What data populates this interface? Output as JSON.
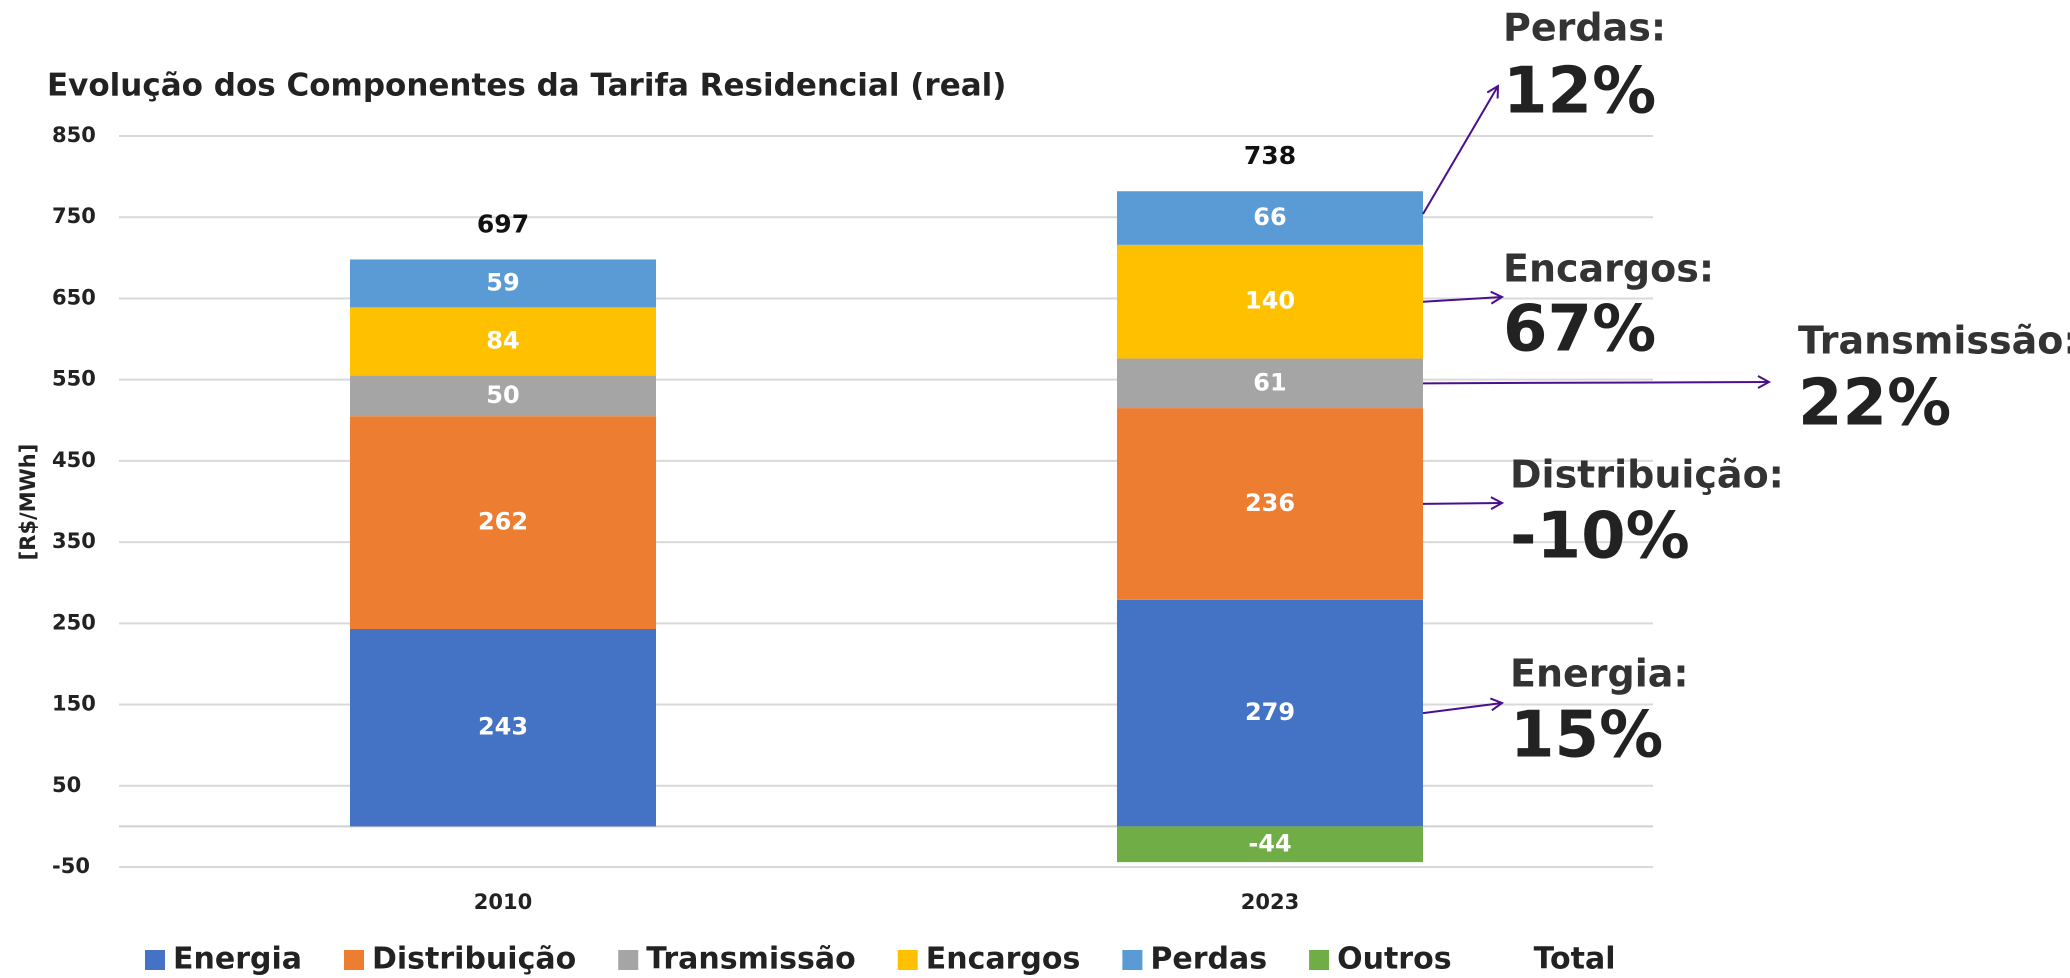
{
  "chart_data": {
    "type": "bar",
    "stacked": true,
    "title": "Evolução dos Componentes da Tarifa Residencial (real)",
    "y_label": "[R$/MWh]",
    "categories": [
      "2010",
      "2023"
    ],
    "series": [
      {
        "name": "Energia",
        "color": "#4472c4",
        "values": [
          243,
          279
        ]
      },
      {
        "name": "Distribuição",
        "color": "#ed7d31",
        "values": [
          262,
          236
        ]
      },
      {
        "name": "Transmissão",
        "color": "#a5a5a5",
        "values": [
          50,
          61
        ]
      },
      {
        "name": "Encargos",
        "color": "#ffc000",
        "values": [
          84,
          140
        ]
      },
      {
        "name": "Perdas",
        "color": "#5b9bd5",
        "values": [
          59,
          66
        ]
      },
      {
        "name": "Outros",
        "color": "#70ad47",
        "values": [
          null,
          -44
        ]
      },
      {
        "name": "Total",
        "values": [
          697,
          738
        ]
      }
    ],
    "ylim": [
      -50,
      850
    ],
    "yticks": [
      -50,
      50,
      150,
      250,
      350,
      450,
      550,
      650,
      750,
      850
    ],
    "grid": true,
    "legend": "bottom",
    "annotations": [
      {
        "label": "Perdas:",
        "value": "12%"
      },
      {
        "label": "Encargos:",
        "value": "67%"
      },
      {
        "label": "Transmissão:",
        "value": "22%"
      },
      {
        "label": "Distribuição:",
        "value": "-10%"
      },
      {
        "label": "Energia:",
        "value": "15%"
      }
    ]
  }
}
